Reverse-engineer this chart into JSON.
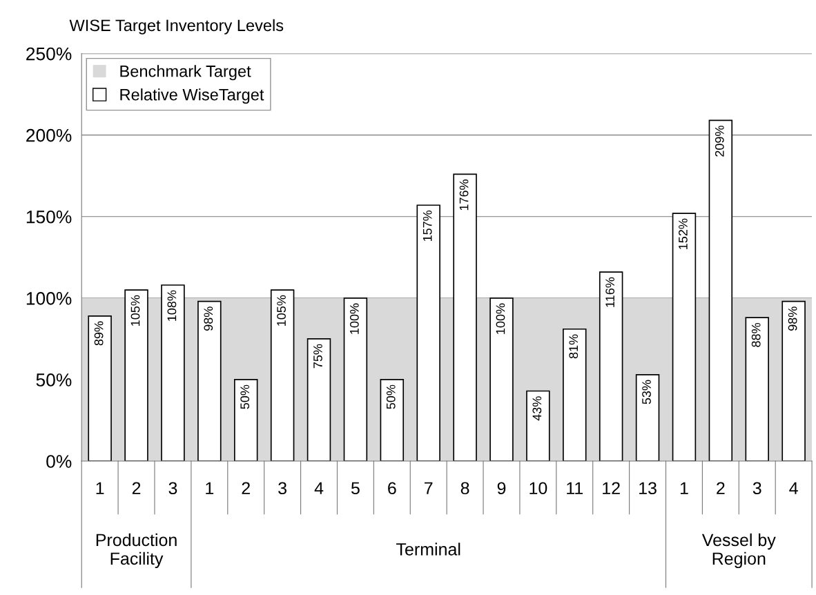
{
  "chart_data": {
    "type": "bar",
    "title": "WISE Target Inventory Levels",
    "categories": [
      "1",
      "2",
      "3",
      "1",
      "2",
      "3",
      "4",
      "5",
      "6",
      "7",
      "8",
      "9",
      "10",
      "11",
      "12",
      "13",
      "1",
      "2",
      "3",
      "4"
    ],
    "series": [
      {
        "name": "Relative WiseTarget",
        "color": "#ffffff",
        "values": [
          89,
          105,
          108,
          98,
          50,
          105,
          75,
          100,
          50,
          157,
          176,
          100,
          43,
          81,
          116,
          53,
          152,
          209,
          88,
          98
        ],
        "value_labels": [
          "89%",
          "105%",
          "108%",
          "98%",
          "50%",
          "105%",
          "75%",
          "100%",
          "50%",
          "157%",
          "176%",
          "100%",
          "43%",
          "81%",
          "116%",
          "53%",
          "152%",
          "209%",
          "88%",
          "98%"
        ]
      }
    ],
    "annotations": [
      "Production Facility",
      "Terminal",
      "Vessel by Region"
    ],
    "ylim": [
      0,
      250
    ],
    "yticks": [
      {
        "value": 0,
        "label": "0%"
      },
      {
        "value": 50,
        "label": "50%"
      },
      {
        "value": 100,
        "label": "100%"
      },
      {
        "value": 150,
        "label": "150%"
      },
      {
        "value": 200,
        "label": "200%"
      },
      {
        "value": 250,
        "label": "250%"
      }
    ],
    "bands": [
      {
        "axis": "y",
        "from": 0,
        "to": 100,
        "label": "Benchmark Target",
        "color": "#d9d9d9"
      }
    ],
    "grid": "y",
    "legend": "top left"
  }
}
